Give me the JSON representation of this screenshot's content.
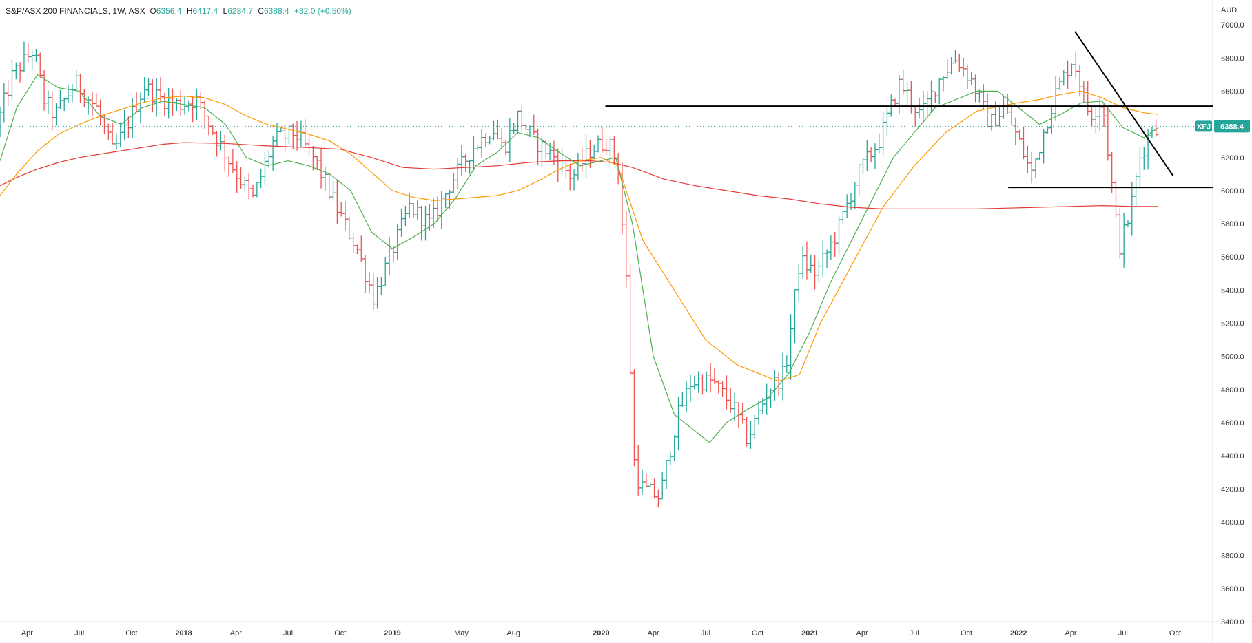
{
  "header": {
    "symbol_name": "S&P/ASX 200 FINANCIALS, 1W, ASX",
    "o_label": "O",
    "o_value": "6356.4",
    "h_label": "H",
    "h_value": "6417.4",
    "l_label": "L",
    "l_value": "6284.7",
    "c_label": "C",
    "c_value": "6388.4",
    "change": "+32.0 (+0.50%)"
  },
  "colors": {
    "up": "#26a69a",
    "down": "#ef5350",
    "ma_short": "#4caf50",
    "ma_mid": "#ff9800",
    "ma_long": "#e53935",
    "badge": "#26a69a",
    "trendline": "#000000"
  },
  "chart_data": {
    "type": "ohlc",
    "title": "S&P/ASX 200 FINANCIALS, 1W, ASX",
    "currency_label": "AUD",
    "ylim": [
      3400,
      7150
    ],
    "y_ticks": [
      "7000.0",
      "6800.0",
      "6600.0",
      "6400.0",
      "6200.0",
      "6000.0",
      "5800.0",
      "5600.0",
      "5400.0",
      "5200.0",
      "5000.0",
      "4800.0",
      "4600.0",
      "4400.0",
      "4200.0",
      "4000.0",
      "3800.0",
      "3600.0",
      "3400.0"
    ],
    "xlim": [
      2017.12,
      2022.93
    ],
    "x_ticks": [
      {
        "label": "Apr",
        "x": 2017.25
      },
      {
        "label": "Jul",
        "x": 2017.5
      },
      {
        "label": "Oct",
        "x": 2017.75
      },
      {
        "label": "2018",
        "x": 2018.0,
        "year": true
      },
      {
        "label": "Apr",
        "x": 2018.25
      },
      {
        "label": "Jul",
        "x": 2018.5
      },
      {
        "label": "Oct",
        "x": 2018.75
      },
      {
        "label": "2019",
        "x": 2019.0,
        "year": true
      },
      {
        "label": "May",
        "x": 2019.33
      },
      {
        "label": "Aug",
        "x": 2019.58
      },
      {
        "label": "2020",
        "x": 2020.0,
        "year": true
      },
      {
        "label": "Apr",
        "x": 2020.25
      },
      {
        "label": "Jul",
        "x": 2020.5
      },
      {
        "label": "Oct",
        "x": 2020.75
      },
      {
        "label": "2021",
        "x": 2021.0,
        "year": true
      },
      {
        "label": "Apr",
        "x": 2021.25
      },
      {
        "label": "Jul",
        "x": 2021.5
      },
      {
        "label": "Oct",
        "x": 2021.75
      },
      {
        "label": "2022",
        "x": 2022.0,
        "year": true
      },
      {
        "label": "Apr",
        "x": 2022.25
      },
      {
        "label": "Jul",
        "x": 2022.5
      },
      {
        "label": "Oct",
        "x": 2022.75
      }
    ],
    "last_price": {
      "ticker": "XFJ",
      "value": 6388.4,
      "label": "6388.4"
    },
    "anchors": [
      {
        "t": 2017.12,
        "v": 6380
      },
      {
        "t": 2017.2,
        "v": 6700
      },
      {
        "t": 2017.3,
        "v": 6850
      },
      {
        "t": 2017.35,
        "v": 6550
      },
      {
        "t": 2017.4,
        "v": 6450
      },
      {
        "t": 2017.5,
        "v": 6650
      },
      {
        "t": 2017.6,
        "v": 6500
      },
      {
        "t": 2017.68,
        "v": 6230
      },
      {
        "t": 2017.75,
        "v": 6400
      },
      {
        "t": 2017.83,
        "v": 6630
      },
      {
        "t": 2017.9,
        "v": 6560
      },
      {
        "t": 2018.0,
        "v": 6520
      },
      {
        "t": 2018.08,
        "v": 6550
      },
      {
        "t": 2018.15,
        "v": 6380
      },
      {
        "t": 2018.25,
        "v": 6150
      },
      {
        "t": 2018.35,
        "v": 5950
      },
      {
        "t": 2018.45,
        "v": 6300
      },
      {
        "t": 2018.55,
        "v": 6350
      },
      {
        "t": 2018.65,
        "v": 6180
      },
      {
        "t": 2018.75,
        "v": 5900
      },
      {
        "t": 2018.85,
        "v": 5650
      },
      {
        "t": 2018.93,
        "v": 5350
      },
      {
        "t": 2019.0,
        "v": 5580
      },
      {
        "t": 2019.1,
        "v": 5900
      },
      {
        "t": 2019.2,
        "v": 5800
      },
      {
        "t": 2019.3,
        "v": 6050
      },
      {
        "t": 2019.4,
        "v": 6250
      },
      {
        "t": 2019.5,
        "v": 6380
      },
      {
        "t": 2019.55,
        "v": 6250
      },
      {
        "t": 2019.62,
        "v": 6450
      },
      {
        "t": 2019.7,
        "v": 6300
      },
      {
        "t": 2019.8,
        "v": 6200
      },
      {
        "t": 2019.88,
        "v": 6080
      },
      {
        "t": 2019.97,
        "v": 6250
      },
      {
        "t": 2020.05,
        "v": 6300
      },
      {
        "t": 2020.1,
        "v": 6150
      },
      {
        "t": 2020.14,
        "v": 5450
      },
      {
        "t": 2020.18,
        "v": 4300
      },
      {
        "t": 2020.22,
        "v": 4200
      },
      {
        "t": 2020.3,
        "v": 4150
      },
      {
        "t": 2020.38,
        "v": 4620
      },
      {
        "t": 2020.45,
        "v": 4850
      },
      {
        "t": 2020.55,
        "v": 4850
      },
      {
        "t": 2020.65,
        "v": 4700
      },
      {
        "t": 2020.72,
        "v": 4500
      },
      {
        "t": 2020.82,
        "v": 4800
      },
      {
        "t": 2020.9,
        "v": 4900
      },
      {
        "t": 2020.97,
        "v": 5580
      },
      {
        "t": 2021.05,
        "v": 5500
      },
      {
        "t": 2021.15,
        "v": 5750
      },
      {
        "t": 2021.25,
        "v": 6100
      },
      {
        "t": 2021.35,
        "v": 6300
      },
      {
        "t": 2021.45,
        "v": 6650
      },
      {
        "t": 2021.55,
        "v": 6450
      },
      {
        "t": 2021.65,
        "v": 6700
      },
      {
        "t": 2021.72,
        "v": 6800
      },
      {
        "t": 2021.8,
        "v": 6650
      },
      {
        "t": 2021.88,
        "v": 6400
      },
      {
        "t": 2021.95,
        "v": 6500
      },
      {
        "t": 2022.02,
        "v": 6300
      },
      {
        "t": 2022.08,
        "v": 6100
      },
      {
        "t": 2022.15,
        "v": 6400
      },
      {
        "t": 2022.2,
        "v": 6600
      },
      {
        "t": 2022.28,
        "v": 6800
      },
      {
        "t": 2022.36,
        "v": 6450
      },
      {
        "t": 2022.42,
        "v": 6550
      },
      {
        "t": 2022.46,
        "v": 6100
      },
      {
        "t": 2022.5,
        "v": 5650
      },
      {
        "t": 2022.55,
        "v": 5850
      },
      {
        "t": 2022.6,
        "v": 6200
      },
      {
        "t": 2022.66,
        "v": 6388
      }
    ],
    "ma_short": {
      "name": "short MA",
      "points": [
        [
          2017.12,
          6180
        ],
        [
          2017.2,
          6500
        ],
        [
          2017.3,
          6700
        ],
        [
          2017.4,
          6620
        ],
        [
          2017.5,
          6600
        ],
        [
          2017.6,
          6450
        ],
        [
          2017.7,
          6400
        ],
        [
          2017.8,
          6500
        ],
        [
          2017.9,
          6540
        ],
        [
          2018.0,
          6520
        ],
        [
          2018.1,
          6500
        ],
        [
          2018.2,
          6400
        ],
        [
          2018.3,
          6200
        ],
        [
          2018.4,
          6150
        ],
        [
          2018.5,
          6180
        ],
        [
          2018.6,
          6150
        ],
        [
          2018.7,
          6100
        ],
        [
          2018.8,
          6000
        ],
        [
          2018.9,
          5750
        ],
        [
          2019.0,
          5650
        ],
        [
          2019.1,
          5720
        ],
        [
          2019.2,
          5800
        ],
        [
          2019.3,
          5950
        ],
        [
          2019.4,
          6150
        ],
        [
          2019.5,
          6230
        ],
        [
          2019.6,
          6350
        ],
        [
          2019.7,
          6320
        ],
        [
          2019.8,
          6230
        ],
        [
          2019.9,
          6150
        ],
        [
          2020.0,
          6180
        ],
        [
          2020.07,
          6200
        ],
        [
          2020.15,
          5800
        ],
        [
          2020.25,
          5000
        ],
        [
          2020.35,
          4650
        ],
        [
          2020.45,
          4550
        ],
        [
          2020.52,
          4480
        ],
        [
          2020.6,
          4600
        ],
        [
          2020.7,
          4680
        ],
        [
          2020.8,
          4750
        ],
        [
          2020.9,
          4900
        ],
        [
          2021.0,
          5150
        ],
        [
          2021.1,
          5450
        ],
        [
          2021.2,
          5700
        ],
        [
          2021.3,
          5950
        ],
        [
          2021.4,
          6200
        ],
        [
          2021.5,
          6350
        ],
        [
          2021.6,
          6500
        ],
        [
          2021.7,
          6550
        ],
        [
          2021.8,
          6600
        ],
        [
          2021.9,
          6600
        ],
        [
          2022.0,
          6500
        ],
        [
          2022.1,
          6400
        ],
        [
          2022.2,
          6460
        ],
        [
          2022.3,
          6530
        ],
        [
          2022.4,
          6540
        ],
        [
          2022.5,
          6380
        ],
        [
          2022.6,
          6320
        ],
        [
          2022.67,
          6380
        ]
      ]
    },
    "ma_mid": {
      "name": "mid MA",
      "points": [
        [
          2017.12,
          5970
        ],
        [
          2017.2,
          6100
        ],
        [
          2017.3,
          6240
        ],
        [
          2017.4,
          6340
        ],
        [
          2017.5,
          6400
        ],
        [
          2017.6,
          6450
        ],
        [
          2017.7,
          6490
        ],
        [
          2017.8,
          6530
        ],
        [
          2017.9,
          6560
        ],
        [
          2018.0,
          6570
        ],
        [
          2018.1,
          6560
        ],
        [
          2018.2,
          6520
        ],
        [
          2018.3,
          6450
        ],
        [
          2018.4,
          6400
        ],
        [
          2018.5,
          6370
        ],
        [
          2018.6,
          6340
        ],
        [
          2018.7,
          6300
        ],
        [
          2018.8,
          6220
        ],
        [
          2018.9,
          6110
        ],
        [
          2019.0,
          6000
        ],
        [
          2019.1,
          5960
        ],
        [
          2019.2,
          5940
        ],
        [
          2019.3,
          5950
        ],
        [
          2019.4,
          5960
        ],
        [
          2019.5,
          5970
        ],
        [
          2019.6,
          6000
        ],
        [
          2019.7,
          6060
        ],
        [
          2019.8,
          6130
        ],
        [
          2019.9,
          6180
        ],
        [
          2020.0,
          6200
        ],
        [
          2020.08,
          6150
        ],
        [
          2020.2,
          5700
        ],
        [
          2020.35,
          5400
        ],
        [
          2020.5,
          5100
        ],
        [
          2020.65,
          4950
        ],
        [
          2020.75,
          4900
        ],
        [
          2020.85,
          4850
        ],
        [
          2020.95,
          4890
        ],
        [
          2021.05,
          5200
        ],
        [
          2021.2,
          5550
        ],
        [
          2021.35,
          5900
        ],
        [
          2021.5,
          6150
        ],
        [
          2021.65,
          6350
        ],
        [
          2021.8,
          6480
        ],
        [
          2021.95,
          6520
        ],
        [
          2022.1,
          6550
        ],
        [
          2022.2,
          6580
        ],
        [
          2022.3,
          6600
        ],
        [
          2022.4,
          6560
        ],
        [
          2022.5,
          6500
        ],
        [
          2022.6,
          6470
        ],
        [
          2022.67,
          6460
        ]
      ]
    },
    "ma_long": {
      "name": "long MA",
      "points": [
        [
          2017.12,
          6030
        ],
        [
          2017.2,
          6080
        ],
        [
          2017.3,
          6130
        ],
        [
          2017.4,
          6170
        ],
        [
          2017.5,
          6200
        ],
        [
          2017.6,
          6220
        ],
        [
          2017.7,
          6240
        ],
        [
          2017.8,
          6260
        ],
        [
          2017.9,
          6280
        ],
        [
          2018.0,
          6290
        ],
        [
          2018.2,
          6285
        ],
        [
          2018.4,
          6270
        ],
        [
          2018.6,
          6260
        ],
        [
          2018.75,
          6250
        ],
        [
          2018.9,
          6200
        ],
        [
          2019.05,
          6140
        ],
        [
          2019.2,
          6130
        ],
        [
          2019.35,
          6140
        ],
        [
          2019.5,
          6150
        ],
        [
          2019.65,
          6170
        ],
        [
          2019.8,
          6180
        ],
        [
          2019.95,
          6180
        ],
        [
          2020.05,
          6170
        ],
        [
          2020.15,
          6140
        ],
        [
          2020.3,
          6070
        ],
        [
          2020.45,
          6030
        ],
        [
          2020.6,
          6000
        ],
        [
          2020.75,
          5970
        ],
        [
          2020.9,
          5950
        ],
        [
          2021.05,
          5920
        ],
        [
          2021.2,
          5900
        ],
        [
          2021.35,
          5890
        ],
        [
          2021.5,
          5890
        ],
        [
          2021.65,
          5890
        ],
        [
          2021.8,
          5890
        ],
        [
          2021.95,
          5895
        ],
        [
          2022.1,
          5900
        ],
        [
          2022.25,
          5905
        ],
        [
          2022.4,
          5910
        ],
        [
          2022.55,
          5905
        ],
        [
          2022.67,
          5905
        ]
      ]
    },
    "trendlines": [
      {
        "name": "resistance",
        "from": [
          2020.02,
          6510
        ],
        "to": [
          2022.93,
          6510
        ]
      },
      {
        "name": "support",
        "from": [
          2021.95,
          6020
        ],
        "to": [
          2022.93,
          6020
        ]
      },
      {
        "name": "descending",
        "from": [
          2022.27,
          6960
        ],
        "to": [
          2022.74,
          6090
        ]
      }
    ]
  }
}
